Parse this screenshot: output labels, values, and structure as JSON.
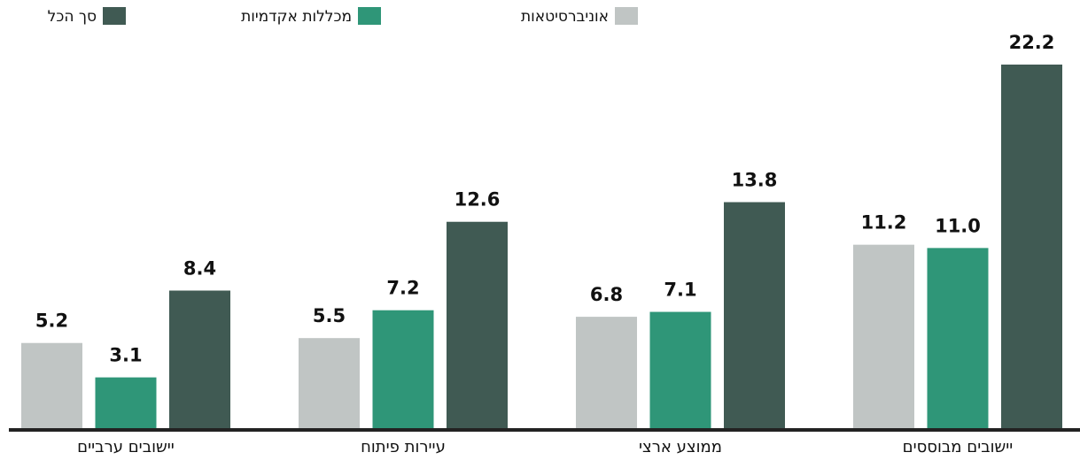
{
  "chart_data": {
    "type": "bar",
    "categories": [
      "יישובים מבוססים",
      "ממוצע ארצי",
      "עיירות פיתוח",
      "יישובים ערביים"
    ],
    "series": [
      {
        "name": "אוניברסיטאות",
        "color": "#c0c5c4",
        "values": [
          11.2,
          6.8,
          5.5,
          5.2
        ],
        "value_labels": [
          "11.2",
          "6.8",
          "5.5",
          "5.2"
        ]
      },
      {
        "name": "מכללות אקדמיות",
        "color": "#2f9678",
        "values": [
          11.0,
          7.1,
          7.2,
          3.1
        ],
        "value_labels": [
          "11.0",
          "7.1",
          "7.2",
          "3.1"
        ]
      },
      {
        "name": "סך הכל",
        "color": "#405a53",
        "values": [
          22.2,
          13.8,
          12.6,
          8.4
        ],
        "value_labels": [
          "22.2",
          "13.8",
          "12.6",
          "8.4"
        ]
      }
    ]
  }
}
